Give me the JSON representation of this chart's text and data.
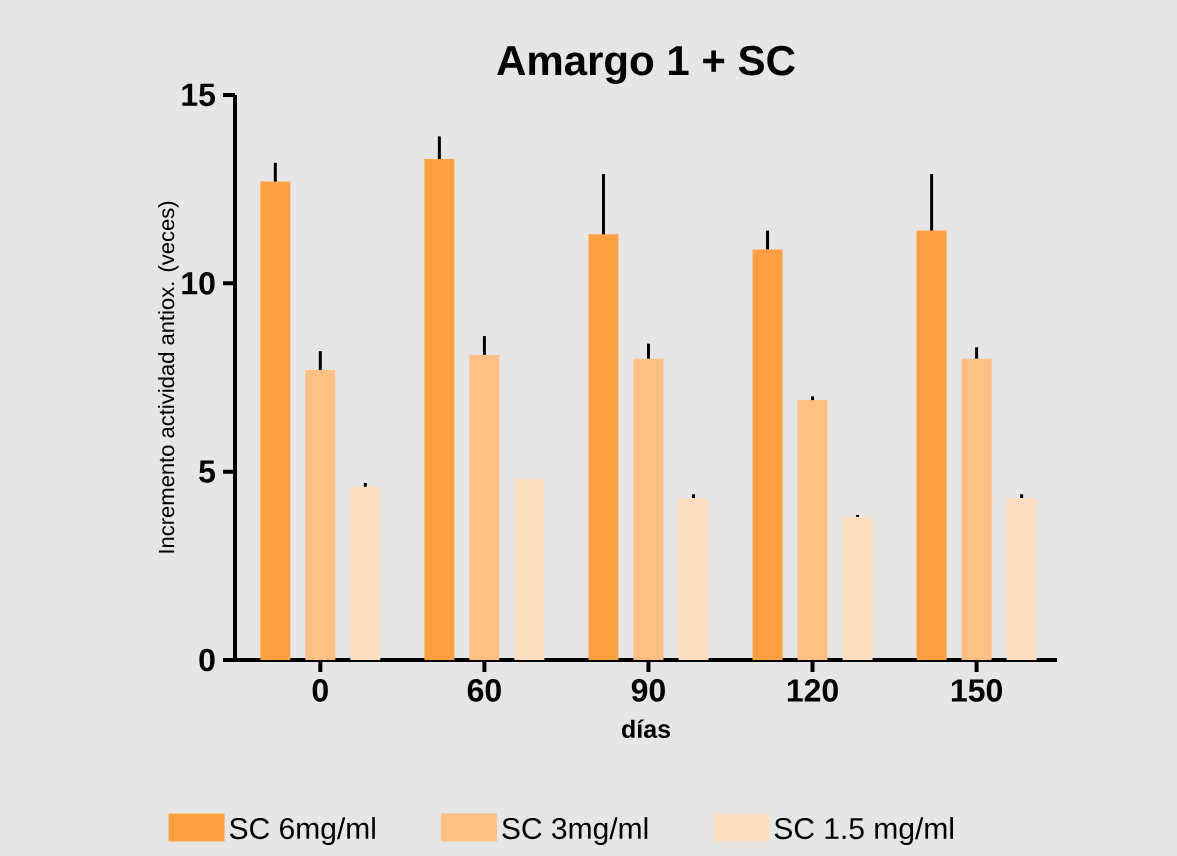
{
  "chart_data": {
    "type": "bar",
    "title": "Amargo 1 + SC",
    "xlabel": "días",
    "ylabel": "Incremento actividad antiox. (veces)",
    "categories": [
      "0",
      "60",
      "90",
      "120",
      "150"
    ],
    "series": [
      {
        "name": "SC 6mg/ml",
        "color": "#ffa040",
        "values": [
          12.7,
          13.3,
          11.3,
          10.9,
          11.4
        ],
        "errors": [
          [
            12.7,
            13.2
          ],
          [
            13.3,
            13.9
          ],
          [
            11.3,
            12.9
          ],
          [
            10.9,
            11.4
          ],
          [
            11.4,
            12.9
          ]
        ]
      },
      {
        "name": "SC 3mg/ml",
        "color": "#ffbf80",
        "values": [
          7.7,
          8.1,
          8.0,
          6.9,
          8.0
        ],
        "errors": [
          [
            7.7,
            8.2
          ],
          [
            8.1,
            8.6
          ],
          [
            8.0,
            8.4
          ],
          [
            6.9,
            7.0
          ],
          [
            8.0,
            8.3
          ]
        ]
      },
      {
        "name": "SC 1.5 mg/ml",
        "color": "#ffdfbf",
        "values": [
          4.6,
          4.8,
          4.3,
          3.8,
          4.3
        ],
        "errors": [
          [
            4.6,
            4.7
          ],
          null,
          [
            4.3,
            4.4
          ],
          [
            3.8,
            3.85
          ],
          [
            4.3,
            4.4
          ]
        ]
      }
    ],
    "ylim": [
      0,
      15
    ],
    "yticks": [
      0,
      5,
      10,
      15
    ],
    "grid": false,
    "legend": "bottom"
  }
}
